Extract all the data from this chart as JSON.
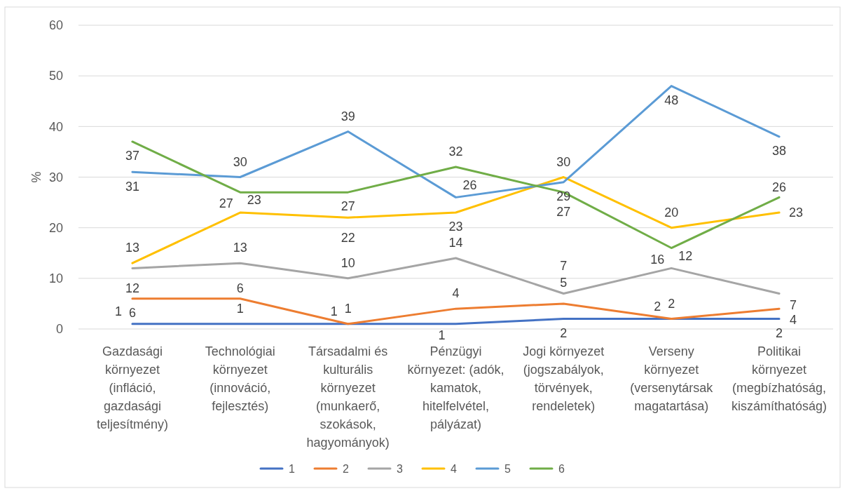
{
  "chart_data": {
    "type": "line",
    "ylabel": "%",
    "categories": [
      "Gazdasági környezet (infláció, gazdasági teljesítmény)",
      "Technológiai környezet (innováció, fejlesztés)",
      "Társadalmi és kulturális környezet (munkaerő, szokások, hagyományok)",
      "Pénzügyi környezet: (adók, kamatok, hitelfelvétel, pályázat)",
      "Jogi környezet (jogszabályok, törvények, rendeletek)",
      "Verseny környezet (versenytársak magatartása)",
      "Politikai környezet (megbízhatóság, kiszámíthatóság)"
    ],
    "series": [
      {
        "name": "1",
        "color": "#4472c4",
        "values": [
          1,
          1,
          1,
          1,
          2,
          2,
          2
        ]
      },
      {
        "name": "2",
        "color": "#ed7d31",
        "values": [
          6,
          6,
          1,
          4,
          5,
          2,
          4
        ]
      },
      {
        "name": "3",
        "color": "#a5a5a5",
        "values": [
          12,
          13,
          10,
          14,
          7,
          12,
          7
        ]
      },
      {
        "name": "4",
        "color": "#ffc000",
        "values": [
          13,
          23,
          22,
          23,
          30,
          20,
          23
        ]
      },
      {
        "name": "5",
        "color": "#5b9bd5",
        "values": [
          31,
          30,
          39,
          26,
          29,
          48,
          38
        ]
      },
      {
        "name": "6",
        "color": "#70ad47",
        "values": [
          37,
          27,
          27,
          32,
          27,
          16,
          26
        ]
      }
    ],
    "ylim": [
      0,
      60
    ],
    "yticks": [
      0,
      10,
      20,
      30,
      40,
      50,
      60
    ],
    "grid": "y",
    "legend": "bottom",
    "data_labels": true,
    "line_style": "solid"
  }
}
